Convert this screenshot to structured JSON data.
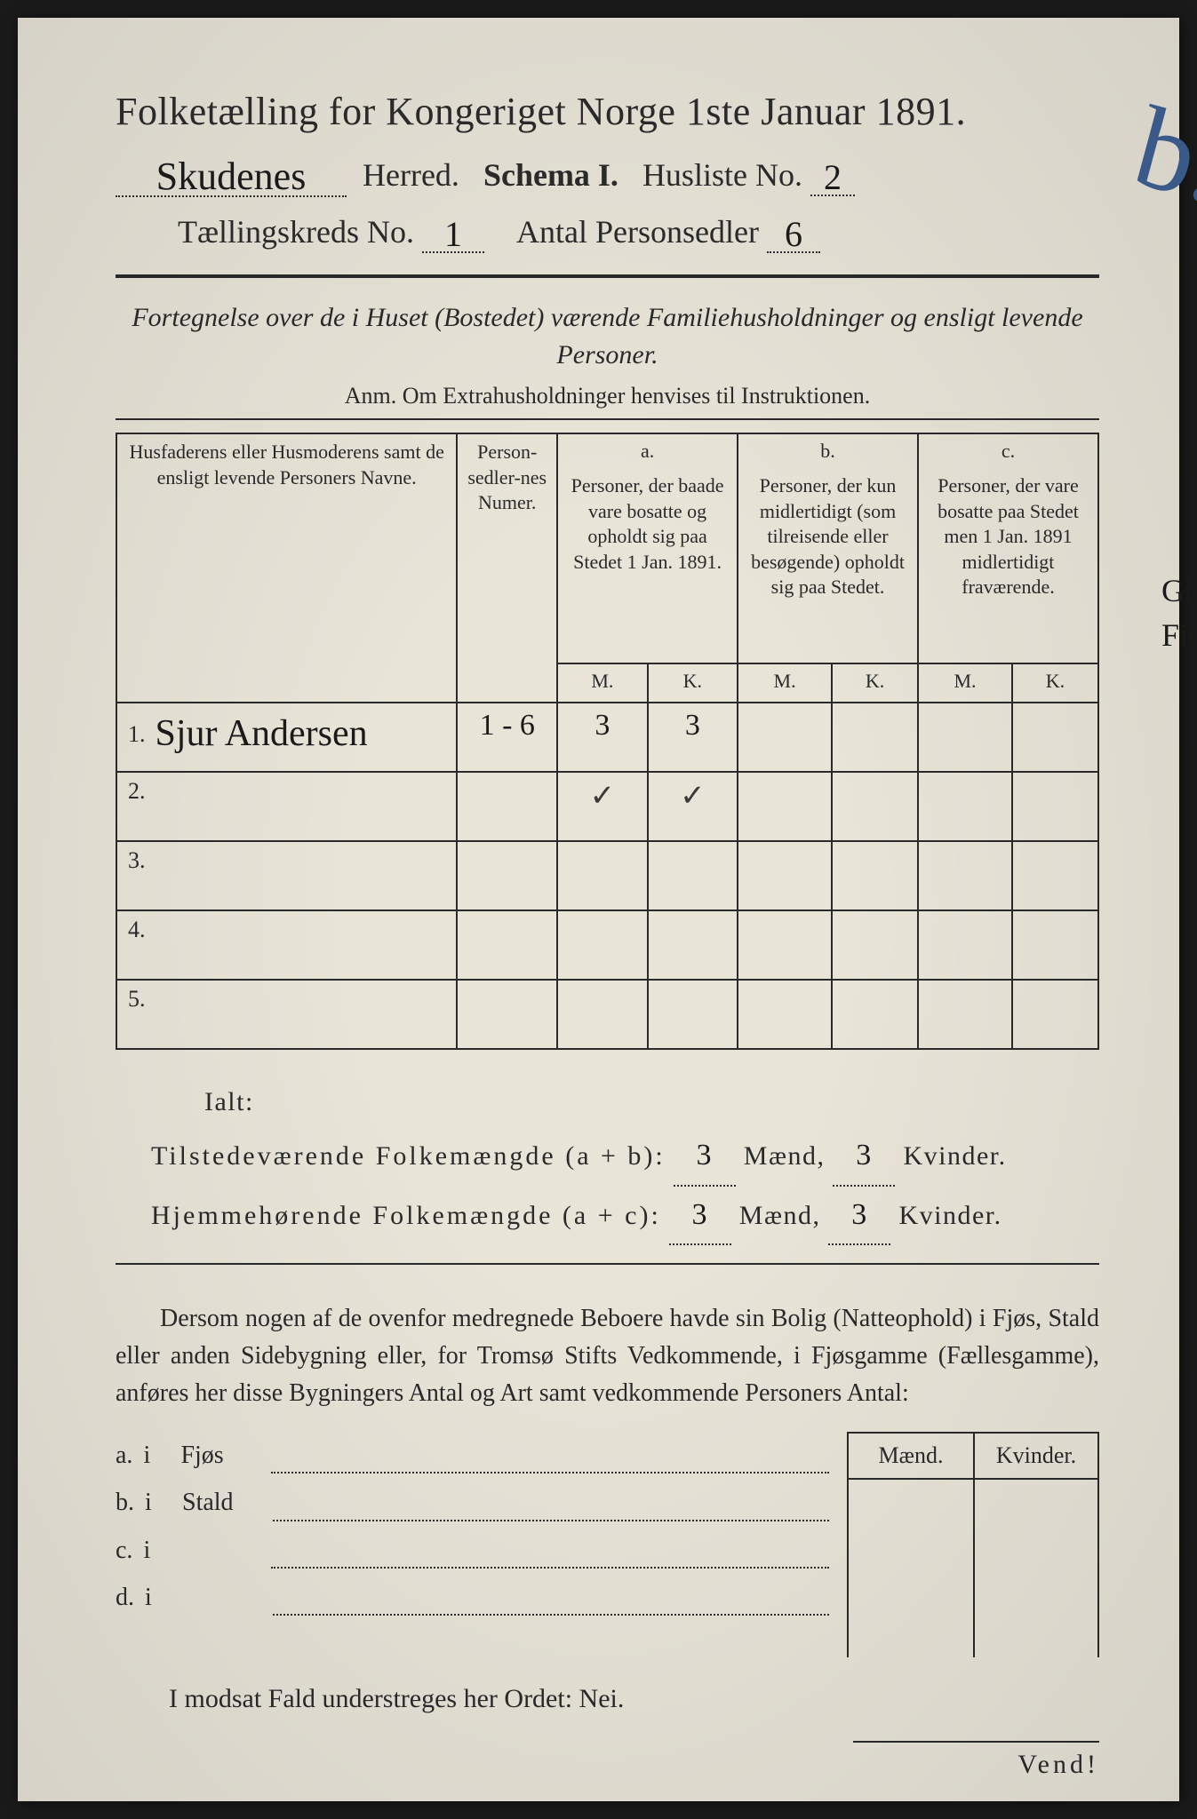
{
  "colors": {
    "page_bg": "#e8e4d8",
    "ink": "#2a2a2a",
    "handwriting": "#1a1a1a",
    "blue_pencil": "#3a5a8a",
    "outer_bg": "#1a1a1a"
  },
  "typography": {
    "title_pt": 44,
    "header_pt": 36,
    "body_pt": 28,
    "table_pt": 22,
    "cursive_family": "Brush Script MT"
  },
  "header": {
    "title": "Folketælling for Kongeriget Norge 1ste Januar 1891.",
    "herred_value": "Skudenes",
    "herred_label": "Herred.",
    "schema_label": "Schema I.",
    "husliste_label": "Husliste No.",
    "husliste_value": "2",
    "kreds_label": "Tællingskreds No.",
    "kreds_value": "1",
    "antal_label": "Antal Personsedler",
    "antal_value": "6",
    "big_annotation": "b."
  },
  "subtitle": {
    "line": "Fortegnelse over de i Huset (Bostedet) værende Familiehusholdninger og ensligt levende Personer.",
    "anm": "Anm. Om Extrahusholdninger henvises til Instruktionen."
  },
  "table": {
    "col1": "Husfaderens eller Husmoderens samt de ensligt levende Personers Navne.",
    "col2": "Person-sedler-nes Numer.",
    "col_a_head": "a.",
    "col_a": "Personer, der baade vare bosatte og opholdt sig paa Stedet 1 Jan. 1891.",
    "col_b_head": "b.",
    "col_b": "Personer, der kun midlertidigt (som tilreisende eller besøgende) opholdt sig paa Stedet.",
    "col_c_head": "c.",
    "col_c": "Personer, der vare bosatte paa Stedet men 1 Jan. 1891 midlertidigt fraværende.",
    "M": "M.",
    "K": "K.",
    "rows": [
      {
        "n": "1.",
        "name": "Sjur Andersen",
        "num": "1 - 6",
        "aM": "3",
        "aK": "3",
        "bM": "",
        "bK": "",
        "cM": "",
        "cK": ""
      },
      {
        "n": "2.",
        "name": "",
        "num": "",
        "aM": "✓",
        "aK": "✓",
        "bM": "",
        "bK": "",
        "cM": "",
        "cK": ""
      },
      {
        "n": "3.",
        "name": "",
        "num": "",
        "aM": "",
        "aK": "",
        "bM": "",
        "bK": "",
        "cM": "",
        "cK": ""
      },
      {
        "n": "4.",
        "name": "",
        "num": "",
        "aM": "",
        "aK": "",
        "bM": "",
        "bK": "",
        "cM": "",
        "cK": ""
      },
      {
        "n": "5.",
        "name": "",
        "num": "",
        "aM": "",
        "aK": "",
        "bM": "",
        "bK": "",
        "cM": "",
        "cK": ""
      }
    ]
  },
  "margin_notes": {
    "line1": "Gbr.",
    "line2": "Fisker"
  },
  "totals": {
    "ialt": "Ialt:",
    "line1_label": "Tilstedeværende Folkemængde (a + b):",
    "line2_label": "Hjemmehørende Folkemængde (a + c):",
    "maend": "Mænd,",
    "kvinder": "Kvinder.",
    "line1_m": "3",
    "line1_k": "3",
    "line2_m": "3",
    "line2_k": "3"
  },
  "paragraph": "Dersom nogen af de ovenfor medregnede Beboere havde sin Bolig (Natteophold) i Fjøs, Stald eller anden Sidebygning eller, for Tromsø Stifts Vedkommende, i Fjøsgamme (Fællesgamme), anføres her disse Bygningers Antal og Art samt vedkommende Personers Antal:",
  "side": {
    "head_m": "Mænd.",
    "head_k": "Kvinder.",
    "rows": [
      {
        "key": "a.",
        "i": "i",
        "label": "Fjøs"
      },
      {
        "key": "b.",
        "i": "i",
        "label": "Stald"
      },
      {
        "key": "c.",
        "i": "i",
        "label": ""
      },
      {
        "key": "d.",
        "i": "i",
        "label": ""
      }
    ]
  },
  "nei_line": "I modsat Fald understreges her Ordet: Nei.",
  "vend": "Vend!"
}
